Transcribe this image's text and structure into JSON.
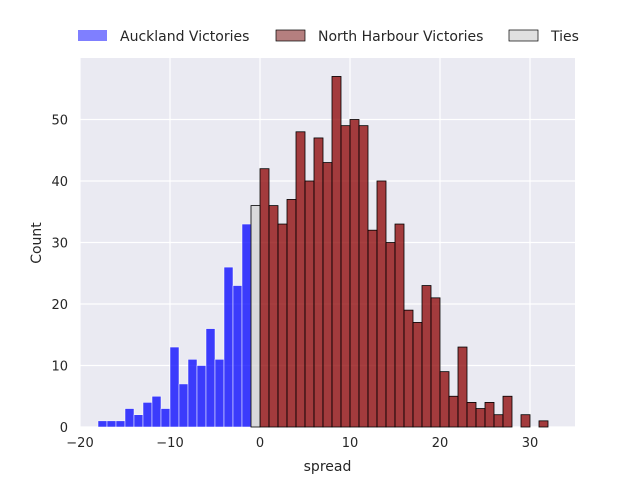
{
  "chart_data": {
    "type": "bar",
    "xlabel": "spread",
    "ylabel": "Count",
    "xlim": [
      -20,
      35
    ],
    "ylim": [
      0,
      60
    ],
    "xticks": [
      -20,
      -10,
      0,
      10,
      20,
      30
    ],
    "yticks": [
      0,
      10,
      20,
      30,
      40,
      50
    ],
    "grid": true,
    "legend_position": "top",
    "bin_width": 1,
    "series": [
      {
        "name": "Auckland Victories",
        "color": "#0000ff",
        "legend_color": "#7f7fff",
        "bins": [
          {
            "x": -17.5,
            "count": 1
          },
          {
            "x": -16.5,
            "count": 1
          },
          {
            "x": -15.5,
            "count": 1
          },
          {
            "x": -14.5,
            "count": 3
          },
          {
            "x": -13.5,
            "count": 2
          },
          {
            "x": -12.5,
            "count": 4
          },
          {
            "x": -11.5,
            "count": 5
          },
          {
            "x": -10.5,
            "count": 3
          },
          {
            "x": -9.5,
            "count": 13
          },
          {
            "x": -8.5,
            "count": 7
          },
          {
            "x": -7.5,
            "count": 11
          },
          {
            "x": -6.5,
            "count": 10
          },
          {
            "x": -5.5,
            "count": 16
          },
          {
            "x": -4.5,
            "count": 11
          },
          {
            "x": -3.5,
            "count": 26
          },
          {
            "x": -2.5,
            "count": 23
          },
          {
            "x": -1.5,
            "count": 33
          }
        ]
      },
      {
        "name": "North Harbour Victories",
        "color": "#8b0000",
        "legend_color": "#b57f7f",
        "bins": [
          {
            "x": 0.5,
            "count": 42
          },
          {
            "x": 1.5,
            "count": 36
          },
          {
            "x": 2.5,
            "count": 33
          },
          {
            "x": 3.5,
            "count": 37
          },
          {
            "x": 4.5,
            "count": 48
          },
          {
            "x": 5.5,
            "count": 40
          },
          {
            "x": 6.5,
            "count": 47
          },
          {
            "x": 7.5,
            "count": 43
          },
          {
            "x": 8.5,
            "count": 57
          },
          {
            "x": 9.5,
            "count": 49
          },
          {
            "x": 10.5,
            "count": 50
          },
          {
            "x": 11.5,
            "count": 49
          },
          {
            "x": 12.5,
            "count": 32
          },
          {
            "x": 13.5,
            "count": 40
          },
          {
            "x": 14.5,
            "count": 30
          },
          {
            "x": 15.5,
            "count": 33
          },
          {
            "x": 16.5,
            "count": 19
          },
          {
            "x": 17.5,
            "count": 17
          },
          {
            "x": 18.5,
            "count": 23
          },
          {
            "x": 19.5,
            "count": 21
          },
          {
            "x": 20.5,
            "count": 9
          },
          {
            "x": 21.5,
            "count": 5
          },
          {
            "x": 22.5,
            "count": 13
          },
          {
            "x": 23.5,
            "count": 4
          },
          {
            "x": 24.5,
            "count": 3
          },
          {
            "x": 25.5,
            "count": 4
          },
          {
            "x": 26.5,
            "count": 2
          },
          {
            "x": 27.5,
            "count": 5
          },
          {
            "x": 29.5,
            "count": 2
          },
          {
            "x": 31.5,
            "count": 1
          }
        ]
      },
      {
        "name": "Ties",
        "color": "#d3d3d3",
        "legend_color": "#e0e0e0",
        "bins": [
          {
            "x": -0.5,
            "count": 36
          }
        ]
      }
    ]
  }
}
